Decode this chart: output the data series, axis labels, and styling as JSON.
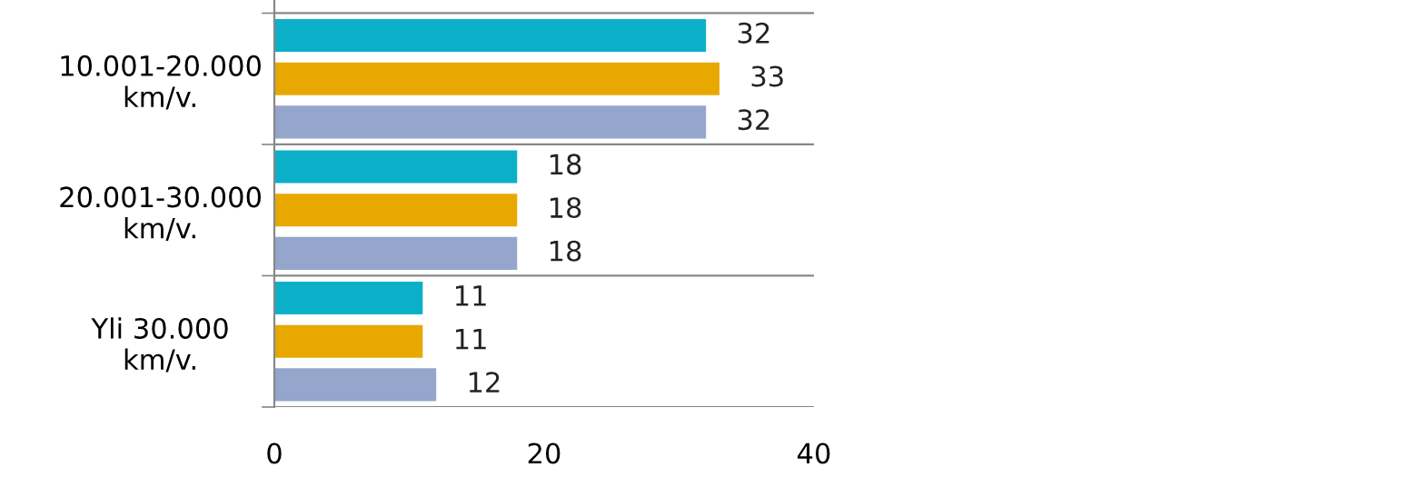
{
  "chart_data": {
    "type": "bar",
    "orientation": "horizontal",
    "categories": [
      "10.001-20.000\nkm/v.",
      "20.001-30.000\nkm/v.",
      "Yli 30.000\nkm/v."
    ],
    "series": [
      {
        "color": "#0bb0c8",
        "values": [
          32,
          18,
          11
        ]
      },
      {
        "color": "#e8a800",
        "values": [
          33,
          18,
          11
        ]
      },
      {
        "color": "#94a6cc",
        "values": [
          32,
          18,
          12
        ]
      }
    ],
    "xlim": [
      0,
      40
    ],
    "xticks": [
      0,
      20,
      40
    ],
    "grid": "y",
    "data_labels": true,
    "legend": false
  }
}
